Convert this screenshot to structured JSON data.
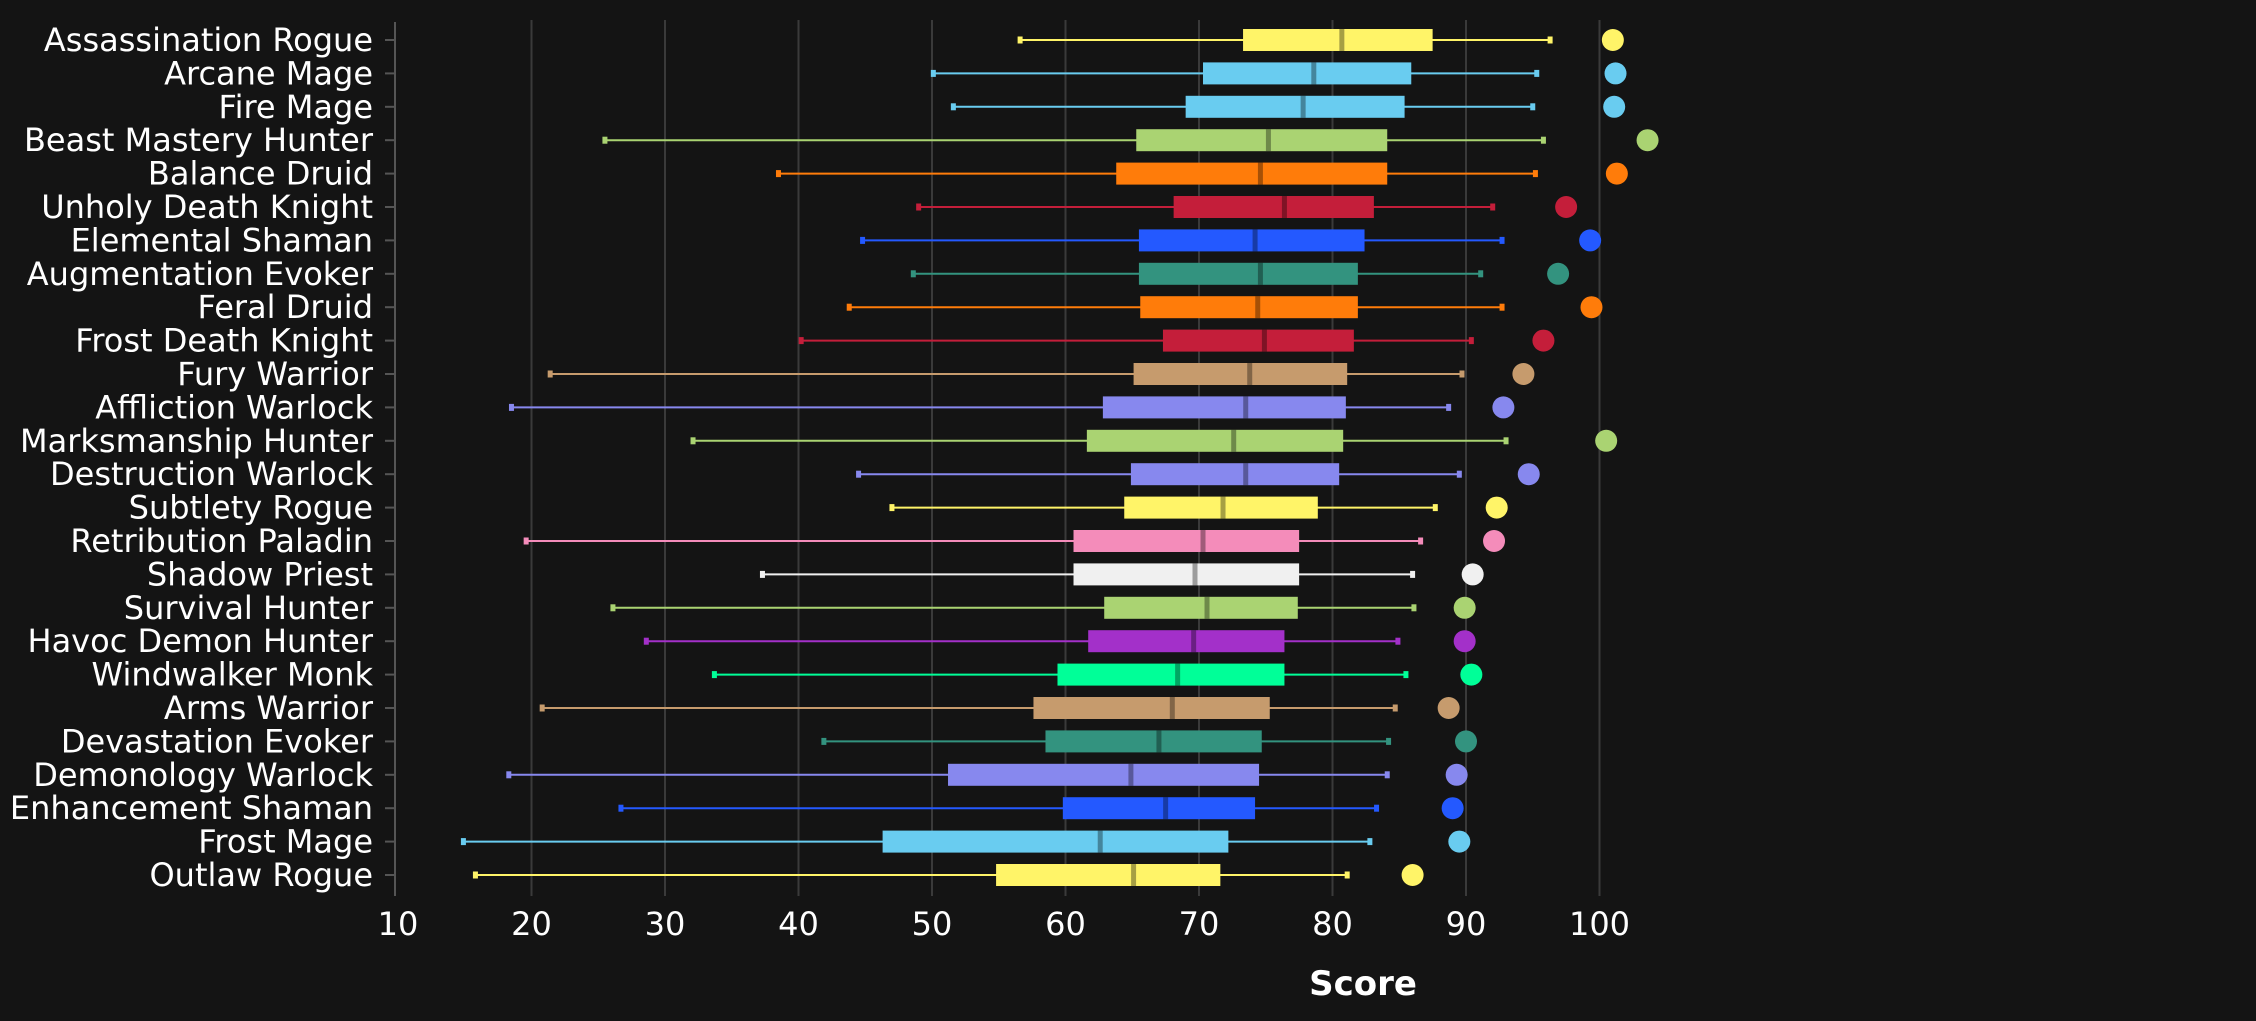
{
  "chart_data": {
    "type": "box",
    "orientation": "horizontal",
    "xlabel": "Score",
    "ylabel": "",
    "xlim": [
      10,
      105
    ],
    "xticks": [
      10,
      20,
      30,
      40,
      50,
      60,
      70,
      80,
      90,
      100
    ],
    "grid": {
      "vertical": true,
      "horizontal": false
    },
    "legend": "none",
    "background": "#141414",
    "categories": [
      "Assassination Rogue",
      "Arcane Mage",
      "Fire Mage",
      "Beast Mastery Hunter",
      "Balance Druid",
      "Unholy Death Knight",
      "Elemental Shaman",
      "Augmentation Evoker",
      "Feral Druid",
      "Frost Death Knight",
      "Fury Warrior",
      "Affliction Warlock",
      "Marksmanship Hunter",
      "Destruction Warlock",
      "Subtlety Rogue",
      "Retribution Paladin",
      "Shadow Priest",
      "Survival Hunter",
      "Havoc Demon Hunter",
      "Windwalker Monk",
      "Arms Warrior",
      "Devastation Evoker",
      "Demonology Warlock",
      "Enhancement Shaman",
      "Frost Mage",
      "Outlaw Rogue"
    ],
    "boxes": [
      {
        "min": 56.6,
        "q1": 73.3,
        "median": 80.7,
        "q3": 87.5,
        "max": 96.3,
        "max_point": 101.0,
        "color": "#FFF468"
      },
      {
        "min": 50.1,
        "q1": 70.3,
        "median": 78.6,
        "q3": 85.9,
        "max": 95.3,
        "max_point": 101.2,
        "color": "#69CCF0"
      },
      {
        "min": 51.6,
        "q1": 69.0,
        "median": 77.8,
        "q3": 85.4,
        "max": 95.0,
        "max_point": 101.1,
        "color": "#69CCF0"
      },
      {
        "min": 25.5,
        "q1": 65.3,
        "median": 75.2,
        "q3": 84.1,
        "max": 95.8,
        "max_point": 103.6,
        "color": "#AAD372"
      },
      {
        "min": 38.5,
        "q1": 63.8,
        "median": 74.6,
        "q3": 84.1,
        "max": 95.2,
        "max_point": 101.3,
        "color": "#FF7C0A"
      },
      {
        "min": 49.0,
        "q1": 68.1,
        "median": 76.4,
        "q3": 83.1,
        "max": 92.0,
        "max_point": 97.5,
        "color": "#C41E3A"
      },
      {
        "min": 44.8,
        "q1": 65.5,
        "median": 74.2,
        "q3": 82.4,
        "max": 92.7,
        "max_point": 99.3,
        "color": "#2459FF"
      },
      {
        "min": 48.6,
        "q1": 65.5,
        "median": 74.6,
        "q3": 81.9,
        "max": 91.1,
        "max_point": 96.9,
        "color": "#33937F"
      },
      {
        "min": 43.8,
        "q1": 65.6,
        "median": 74.4,
        "q3": 81.9,
        "max": 92.7,
        "max_point": 99.4,
        "color": "#FF7C0A"
      },
      {
        "min": 40.2,
        "q1": 67.3,
        "median": 74.9,
        "q3": 81.6,
        "max": 90.4,
        "max_point": 95.8,
        "color": "#C41E3A"
      },
      {
        "min": 21.4,
        "q1": 65.1,
        "median": 73.8,
        "q3": 81.1,
        "max": 89.7,
        "max_point": 94.3,
        "color": "#C69B6D"
      },
      {
        "min": 18.5,
        "q1": 62.8,
        "median": 73.5,
        "q3": 81.0,
        "max": 88.7,
        "max_point": 92.8,
        "color": "#8788EE"
      },
      {
        "min": 32.1,
        "q1": 61.6,
        "median": 72.6,
        "q3": 80.8,
        "max": 93.0,
        "max_point": 100.5,
        "color": "#AAD372"
      },
      {
        "min": 44.5,
        "q1": 64.9,
        "median": 73.5,
        "q3": 80.5,
        "max": 89.5,
        "max_point": 94.7,
        "color": "#8788EE"
      },
      {
        "min": 47.0,
        "q1": 64.4,
        "median": 71.8,
        "q3": 78.9,
        "max": 87.7,
        "max_point": 92.3,
        "color": "#FFF468"
      },
      {
        "min": 19.6,
        "q1": 60.6,
        "median": 70.3,
        "q3": 77.5,
        "max": 86.6,
        "max_point": 92.1,
        "color": "#F48CBA"
      },
      {
        "min": 37.3,
        "q1": 60.6,
        "median": 69.7,
        "q3": 77.5,
        "max": 86.0,
        "max_point": 90.5,
        "color": "#F0F0F0"
      },
      {
        "min": 26.1,
        "q1": 62.9,
        "median": 70.6,
        "q3": 77.4,
        "max": 86.1,
        "max_point": 89.9,
        "color": "#AAD372"
      },
      {
        "min": 28.6,
        "q1": 61.7,
        "median": 69.6,
        "q3": 76.4,
        "max": 84.9,
        "max_point": 89.9,
        "color": "#A330C9"
      },
      {
        "min": 33.7,
        "q1": 59.4,
        "median": 68.4,
        "q3": 76.4,
        "max": 85.5,
        "max_point": 90.4,
        "color": "#00FF98"
      },
      {
        "min": 20.8,
        "q1": 57.6,
        "median": 68.0,
        "q3": 75.3,
        "max": 84.7,
        "max_point": 88.7,
        "color": "#C69B6D"
      },
      {
        "min": 41.9,
        "q1": 58.5,
        "median": 67.0,
        "q3": 74.7,
        "max": 84.2,
        "max_point": 90.0,
        "color": "#33937F"
      },
      {
        "min": 18.3,
        "q1": 51.2,
        "median": 64.9,
        "q3": 74.5,
        "max": 84.1,
        "max_point": 89.3,
        "color": "#8788EE"
      },
      {
        "min": 26.7,
        "q1": 59.8,
        "median": 67.5,
        "q3": 74.2,
        "max": 83.3,
        "max_point": 89.0,
        "color": "#2459FF"
      },
      {
        "min": 14.9,
        "q1": 46.3,
        "median": 62.6,
        "q3": 72.2,
        "max": 82.8,
        "max_point": 89.5,
        "color": "#69CCF0"
      },
      {
        "min": 15.8,
        "q1": 54.8,
        "median": 65.1,
        "q3": 71.6,
        "max": 81.1,
        "max_point": 86.0,
        "color": "#FFF468"
      }
    ]
  }
}
